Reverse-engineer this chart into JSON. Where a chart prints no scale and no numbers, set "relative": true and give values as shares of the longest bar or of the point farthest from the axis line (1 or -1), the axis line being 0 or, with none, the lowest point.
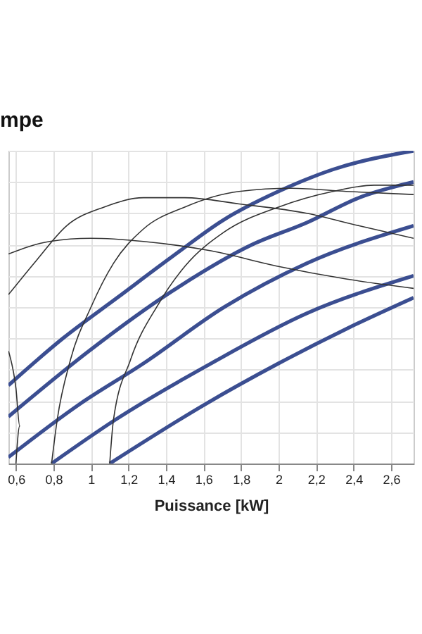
{
  "chart_data": {
    "type": "line",
    "title": "mpe",
    "xlabel": "Puissance [kW]",
    "relative": true,
    "grid": true,
    "xlim": [
      0.56,
      2.72
    ],
    "xticks": [
      {
        "value": 0.6,
        "label": "0,6"
      },
      {
        "value": 0.8,
        "label": "0,8"
      },
      1,
      {
        "value": 1.2,
        "label": "1,2"
      },
      {
        "value": 1.4,
        "label": "1,4"
      },
      {
        "value": 1.6,
        "label": "1,6"
      },
      {
        "value": 1.8,
        "label": "1,8"
      },
      2,
      {
        "value": 2.2,
        "label": "2,2"
      },
      {
        "value": 2.4,
        "label": "2,4"
      },
      {
        "value": 2.6,
        "label": "2,6"
      }
    ],
    "series": [
      {
        "color": "#3b4e91",
        "x": [
          0.56,
          0.85,
          1.14,
          1.43,
          1.71,
          2.0,
          2.29,
          2.72
        ],
        "values": [
          0.25,
          0.4,
          0.53,
          0.66,
          0.78,
          0.87,
          0.94,
          1.0
        ]
      },
      {
        "color": "#3b4e91",
        "x": [
          0.56,
          0.99,
          1.43,
          1.86,
          2.15,
          2.43,
          2.72
        ],
        "values": [
          0.15,
          0.36,
          0.55,
          0.7,
          0.77,
          0.85,
          0.9
        ]
      },
      {
        "color": "#3b4e91",
        "x": [
          0.56,
          0.94,
          1.28,
          1.71,
          2.15,
          2.72
        ],
        "values": [
          0.02,
          0.19,
          0.32,
          0.5,
          0.64,
          0.76
        ]
      },
      {
        "color": "#3b4e91",
        "x": [
          0.79,
          1.13,
          1.64,
          2.15,
          2.72
        ],
        "values": [
          0,
          0.14,
          0.32,
          0.48,
          0.6
        ]
      },
      {
        "color": "#3b4e91",
        "x": [
          1.1,
          1.61,
          2.0,
          2.36,
          2.72
        ],
        "values": [
          0,
          0.19,
          0.32,
          0.43,
          0.53
        ]
      },
      {
        "color": "#333333",
        "type": "line",
        "x": [
          0.6,
          0.62,
          0.6,
          0.56
        ],
        "values": [
          0,
          0.12,
          0.24,
          0.36
        ]
      },
      {
        "color": "#333333",
        "x": [
          0.56,
          0.78,
          1.0,
          1.28,
          1.64,
          2.0,
          2.36,
          2.72
        ],
        "values": [
          0.67,
          0.71,
          0.72,
          0.71,
          0.68,
          0.63,
          0.59,
          0.56
        ]
      },
      {
        "color": "#333333",
        "x": [
          0.56,
          0.71,
          0.87,
          1.07,
          1.28,
          1.5,
          1.79,
          2.15,
          2.43,
          2.72
        ],
        "values": [
          0.54,
          0.65,
          0.76,
          0.82,
          0.85,
          0.85,
          0.83,
          0.8,
          0.76,
          0.72
        ]
      },
      {
        "color": "#333333",
        "x": [
          0.79,
          0.82,
          0.89,
          1.0,
          1.12,
          1.28,
          1.5,
          1.79,
          2.07,
          2.36,
          2.72
        ],
        "values": [
          0,
          0.14,
          0.33,
          0.5,
          0.64,
          0.75,
          0.82,
          0.87,
          0.88,
          0.87,
          0.86
        ]
      },
      {
        "color": "#333333",
        "x": [
          1.1,
          1.12,
          1.21,
          1.36,
          1.5,
          1.71,
          2.0,
          2.29,
          2.51,
          2.72
        ],
        "values": [
          0,
          0.14,
          0.33,
          0.51,
          0.63,
          0.74,
          0.82,
          0.87,
          0.89,
          0.89
        ]
      }
    ]
  }
}
